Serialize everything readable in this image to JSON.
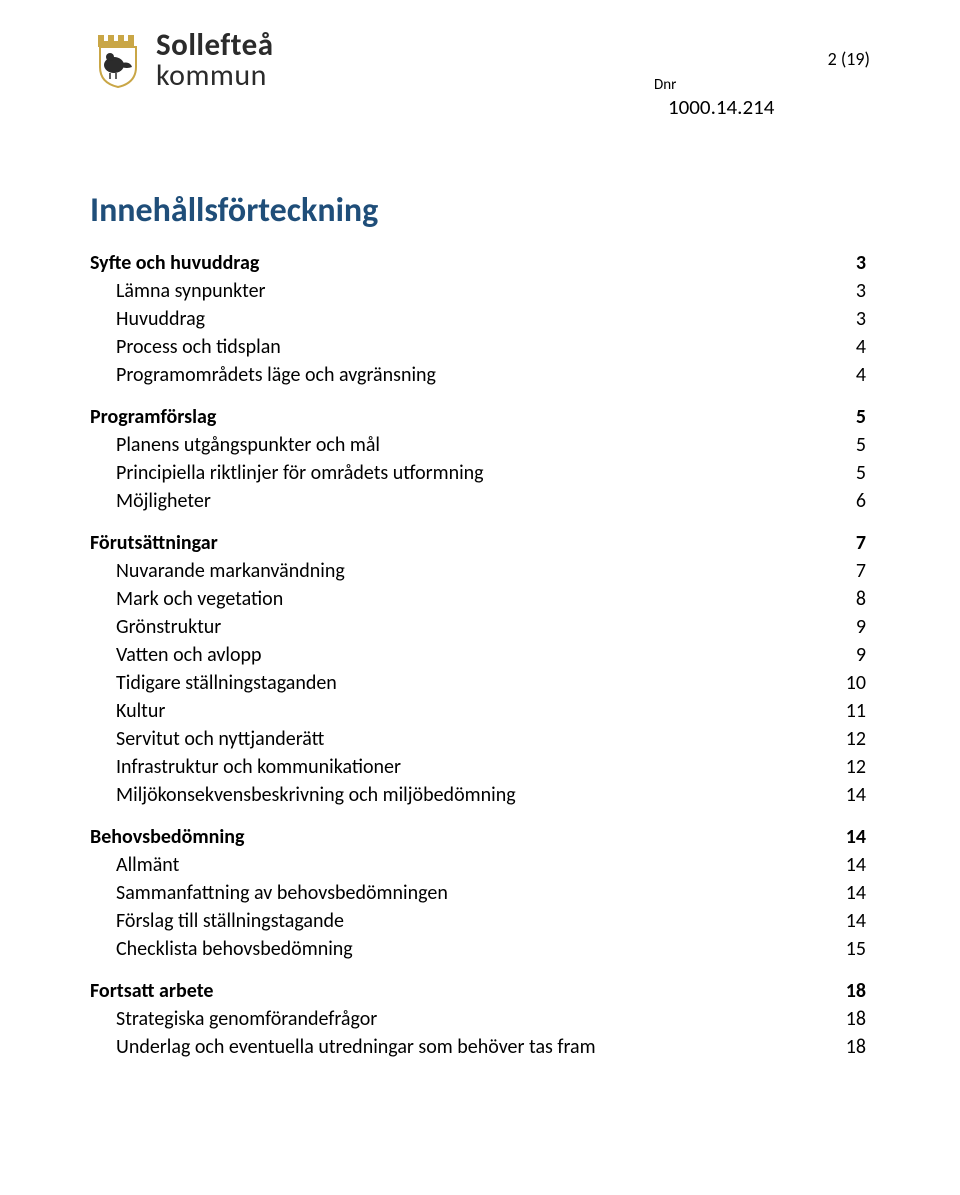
{
  "header": {
    "logo_top": "Sollefteå",
    "logo_bottom": "kommun",
    "page_number": "2 (19)",
    "dnr_label": "Dnr",
    "dnr_value": "1000.14.214"
  },
  "toc": {
    "title": "Innehållsförteckning",
    "sections": [
      {
        "head": {
          "label": "Syfte och huvuddrag",
          "page": "3"
        },
        "items": [
          {
            "label": "Lämna synpunkter",
            "page": "3"
          },
          {
            "label": "Huvuddrag",
            "page": "3"
          },
          {
            "label": "Process och tidsplan",
            "page": "4"
          },
          {
            "label": "Programområdets läge och avgränsning",
            "page": "4"
          }
        ]
      },
      {
        "head": {
          "label": "Programförslag",
          "page": "5"
        },
        "items": [
          {
            "label": "Planens utgångspunkter och mål",
            "page": "5"
          },
          {
            "label": "Principiella riktlinjer för områdets utformning",
            "page": "5"
          },
          {
            "label": "Möjligheter",
            "page": "6"
          }
        ]
      },
      {
        "head": {
          "label": "Förutsättningar",
          "page": "7"
        },
        "items": [
          {
            "label": "Nuvarande markanvändning",
            "page": "7"
          },
          {
            "label": "Mark och vegetation",
            "page": "8"
          },
          {
            "label": "Grönstruktur",
            "page": "9"
          },
          {
            "label": "Vatten och avlopp",
            "page": "9"
          },
          {
            "label": "Tidigare ställningstaganden",
            "page": "10"
          },
          {
            "label": "Kultur",
            "page": "11"
          },
          {
            "label": "Servitut och nyttjanderätt",
            "page": "12"
          },
          {
            "label": "Infrastruktur och kommunikationer",
            "page": "12"
          },
          {
            "label": "Miljökonsekvensbeskrivning och miljöbedömning",
            "page": "14"
          }
        ]
      },
      {
        "head": {
          "label": "Behovsbedömning",
          "page": "14"
        },
        "items": [
          {
            "label": "Allmänt",
            "page": "14"
          },
          {
            "label": "Sammanfattning av behovsbedömningen",
            "page": "14"
          },
          {
            "label": "Förslag till ställningstagande",
            "page": "14"
          },
          {
            "label": "Checklista behovsbedömning",
            "page": "15"
          }
        ]
      },
      {
        "head": {
          "label": "Fortsatt arbete",
          "page": "18"
        },
        "items": [
          {
            "label": "Strategiska genomförandefrågor",
            "page": "18"
          },
          {
            "label": "Underlag och eventuella utredningar som behöver tas fram",
            "page": "18"
          }
        ]
      }
    ]
  },
  "colors": {
    "heading": "#1f4e79",
    "text": "#000000",
    "background": "#ffffff",
    "logo_gold": "#c9a646",
    "logo_dark": "#2b2b2b"
  },
  "typography": {
    "title_fontsize": 34,
    "row_fontsize": 20,
    "logo_fontsize": 31
  }
}
